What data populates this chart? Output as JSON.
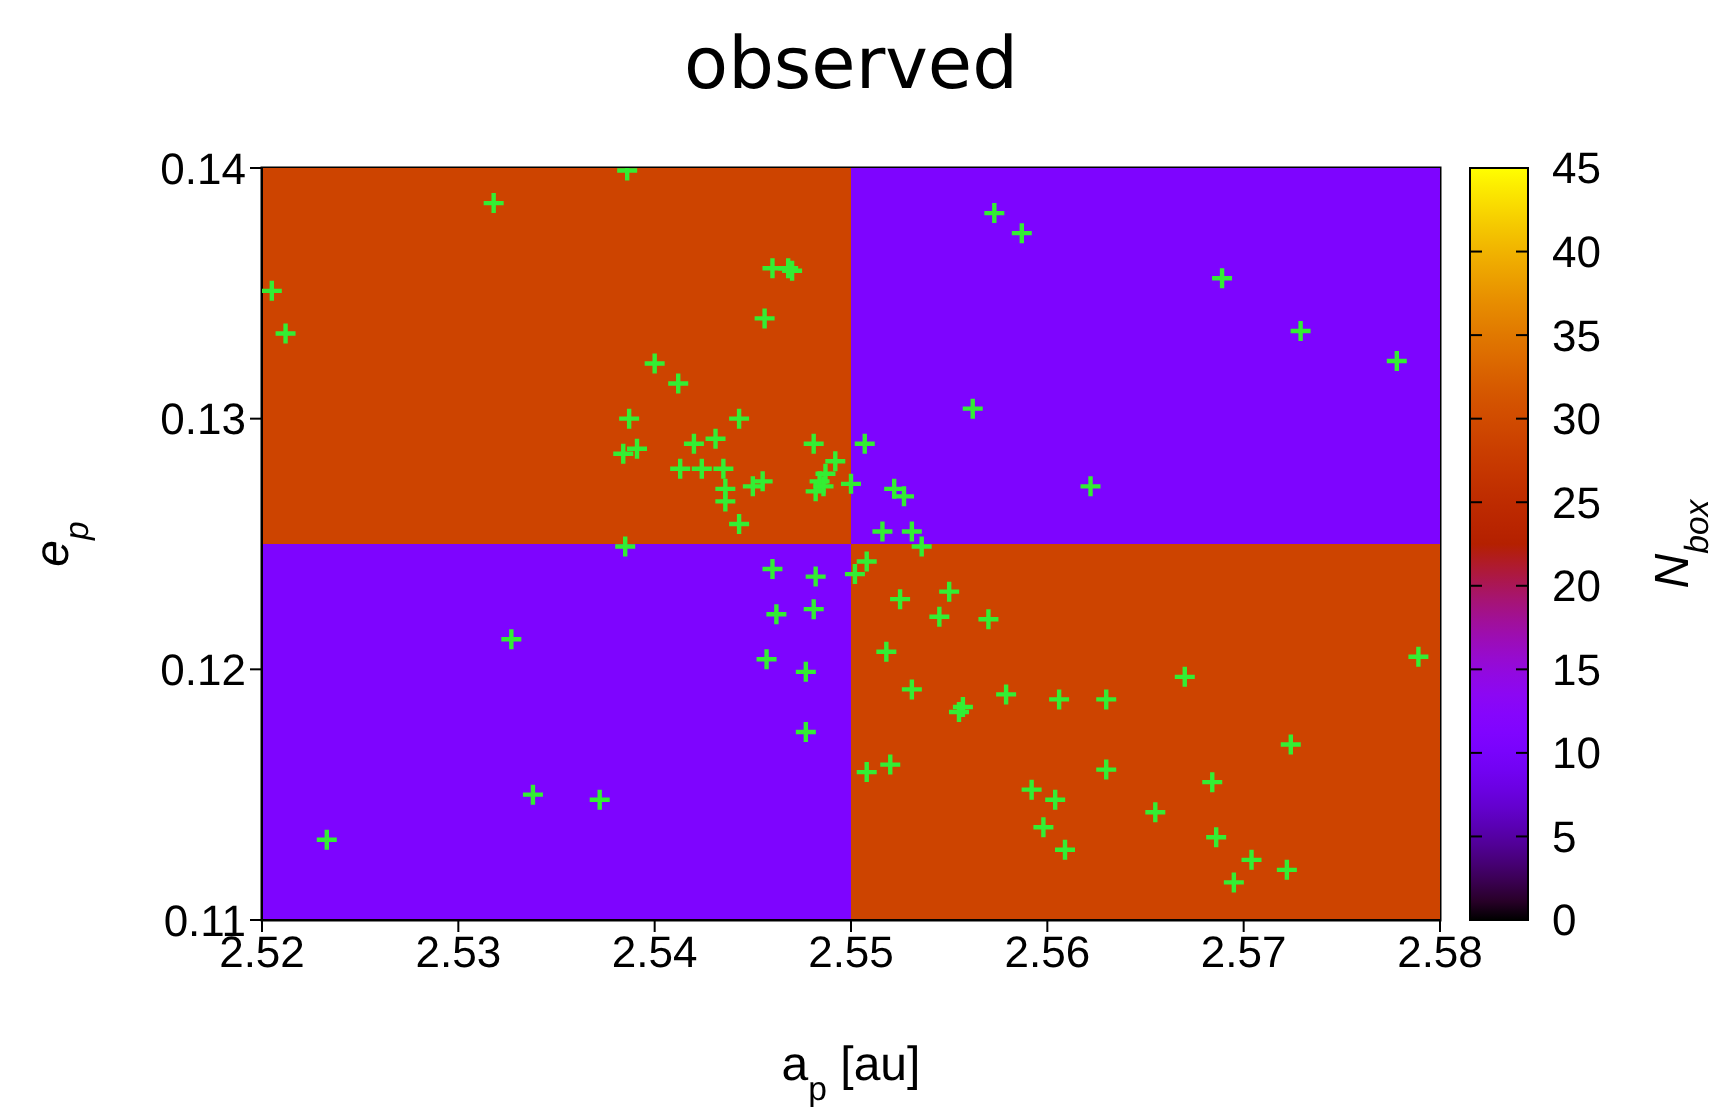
{
  "chart_data": {
    "type": "heatmap",
    "title": "observed",
    "xlabel": "a$_{p}$ [au]",
    "ylabel": "e$_{p}$",
    "clabel": "N$_{box}$",
    "cells": [
      [
        29,
        11
      ],
      [
        11,
        29
      ]
    ],
    "clim": [
      0,
      45
    ],
    "cticks": [
      0,
      5,
      10,
      15,
      20,
      25,
      30,
      35,
      40,
      45
    ],
    "xlim": [
      2.52,
      2.58
    ],
    "xticks": [
      2.52,
      2.53,
      2.54,
      2.55,
      2.56,
      2.57,
      2.58
    ],
    "ylim": [
      0.11,
      0.14
    ],
    "yticks": [
      0.11,
      0.12,
      0.13,
      0.14
    ],
    "marker": "cross",
    "series": [
      {
        "type": "scatter",
        "color": "#33ee33",
        "x": [
          2.5386,
          2.5318,
          2.5205,
          2.5212,
          2.546,
          2.5468,
          2.547,
          2.5456,
          2.54,
          2.5412,
          2.5387,
          2.5443,
          2.542,
          2.5431,
          2.5384,
          2.5391,
          2.5413,
          2.5424,
          2.5435,
          2.5436,
          2.5436,
          2.545,
          2.5455,
          2.5443,
          2.5481,
          2.5492,
          2.5487,
          2.5484,
          2.5482,
          2.5486,
          2.55,
          2.5507,
          2.5385,
          2.5573,
          2.5587,
          2.5689,
          2.5729,
          2.5778,
          2.5562,
          2.5522,
          2.5527,
          2.5622,
          2.5516,
          2.5531,
          2.5536,
          2.546,
          2.5482,
          2.5502,
          2.5508,
          2.5462,
          2.5481,
          2.5327,
          2.5457,
          2.5477,
          2.5477,
          2.5338,
          2.5372,
          2.5233,
          2.5508,
          2.5525,
          2.555,
          2.5545,
          2.557,
          2.5518,
          2.5789,
          2.567,
          2.5531,
          2.5555,
          2.5557,
          2.5579,
          2.5606,
          2.563,
          2.5724,
          2.552,
          2.563,
          2.5592,
          2.5604,
          2.5684,
          2.5655,
          2.5598,
          2.5686,
          2.5609,
          2.5704,
          2.5722,
          2.5695
        ],
        "values": [
          0.1399,
          0.1386,
          0.1351,
          0.1334,
          0.136,
          0.136,
          0.1359,
          0.134,
          0.1322,
          0.1314,
          0.13,
          0.13,
          0.129,
          0.1292,
          0.1286,
          0.1288,
          0.128,
          0.128,
          0.128,
          0.1272,
          0.1267,
          0.1273,
          0.1275,
          0.1258,
          0.129,
          0.1283,
          0.1278,
          0.1275,
          0.1271,
          0.1273,
          0.1274,
          0.129,
          0.1249,
          0.1382,
          0.1374,
          0.1356,
          0.1335,
          0.1323,
          0.1304,
          0.1272,
          0.1269,
          0.1273,
          0.1255,
          0.1255,
          0.1249,
          0.124,
          0.1237,
          0.1238,
          0.1243,
          0.1222,
          0.1224,
          0.1212,
          0.1204,
          0.1199,
          0.1175,
          0.115,
          0.1148,
          0.1132,
          0.1159,
          0.1228,
          0.1231,
          0.1221,
          0.122,
          0.1207,
          0.1205,
          0.1197,
          0.1192,
          0.1183,
          0.1185,
          0.119,
          0.1188,
          0.1188,
          0.117,
          0.1162,
          0.116,
          0.1152,
          0.1148,
          0.1155,
          0.1143,
          0.1137,
          0.1133,
          0.1128,
          0.1124,
          0.112,
          0.1115
        ]
      }
    ]
  }
}
